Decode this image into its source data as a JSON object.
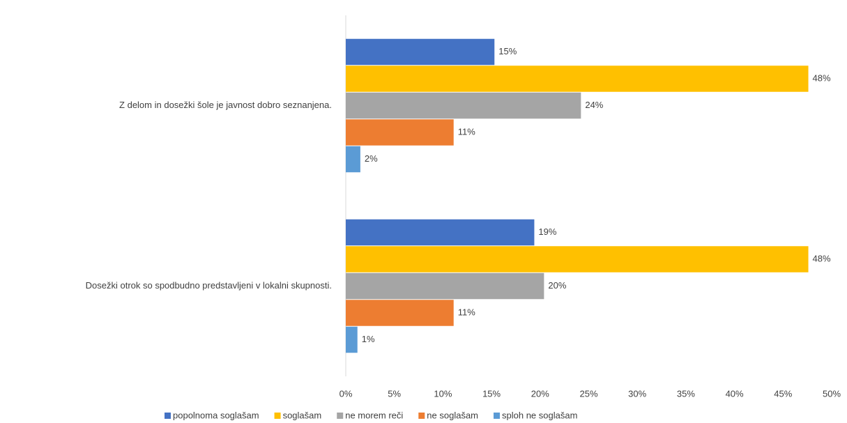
{
  "chart_data": {
    "type": "hbar",
    "categories": [
      "Z delom in dosežki šole je javnost dobro seznanjena.",
      "Dosežki otrok so spodbudno predstavljeni v lokalni skupnosti."
    ],
    "series": [
      {
        "name": "popolnoma soglašam",
        "color": "#4472c4",
        "values": [
          15.3,
          19.4
        ],
        "value_labels": [
          "15%",
          "19%"
        ]
      },
      {
        "name": "soglašam",
        "color": "#ffc000",
        "values": [
          47.6,
          47.6
        ],
        "value_labels": [
          "48%",
          "48%"
        ]
      },
      {
        "name": "ne morem reči",
        "color": "#a5a5a5",
        "values": [
          24.2,
          20.4
        ],
        "value_labels": [
          "24%",
          "20%"
        ]
      },
      {
        "name": "ne soglašam",
        "color": "#ed7d31",
        "values": [
          11.1,
          11.1
        ],
        "value_labels": [
          "11%",
          "11%"
        ]
      },
      {
        "name": "sploh ne soglašam",
        "color": "#5b9bd5",
        "values": [
          1.5,
          1.2
        ],
        "value_labels": [
          "2%",
          "1%"
        ]
      }
    ],
    "xlim": [
      0,
      50
    ],
    "xticks": [
      {
        "value": 0,
        "label": "0%"
      },
      {
        "value": 5,
        "label": "5%"
      },
      {
        "value": 10,
        "label": "10%"
      },
      {
        "value": 15,
        "label": "15%"
      },
      {
        "value": 20,
        "label": "20%"
      },
      {
        "value": 25,
        "label": "25%"
      },
      {
        "value": 30,
        "label": "30%"
      },
      {
        "value": 35,
        "label": "35%"
      },
      {
        "value": 40,
        "label": "40%"
      },
      {
        "value": 45,
        "label": "45%"
      },
      {
        "value": 50,
        "label": "50%"
      }
    ],
    "grid": false,
    "legend": "bottom"
  }
}
